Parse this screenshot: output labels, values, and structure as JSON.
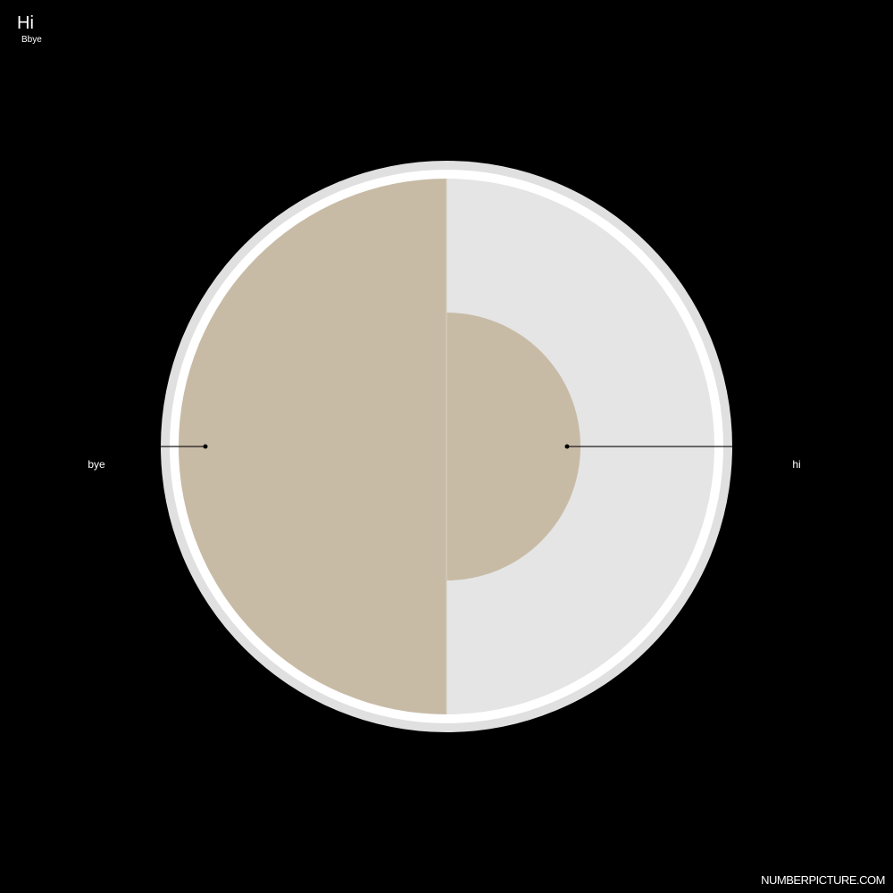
{
  "header": {
    "title": "Hi",
    "subtitle": "Bbye"
  },
  "footer": {
    "watermark": "NUMBERPICTURE.COM"
  },
  "chart_data": {
    "type": "pie",
    "title": "Hi",
    "subtitle": "Bbye",
    "series": [
      {
        "name": "bye",
        "value": 1,
        "max": 1,
        "side": "left",
        "color": "#c8bba6"
      },
      {
        "name": "hi",
        "value": 0.25,
        "max": 1,
        "side": "right",
        "color": "#c8bba6"
      }
    ],
    "track_color": "#e5e5e5",
    "ring_color": "#ffffff",
    "outer_ring_color": "#e0e0e0",
    "background": "#000000"
  }
}
